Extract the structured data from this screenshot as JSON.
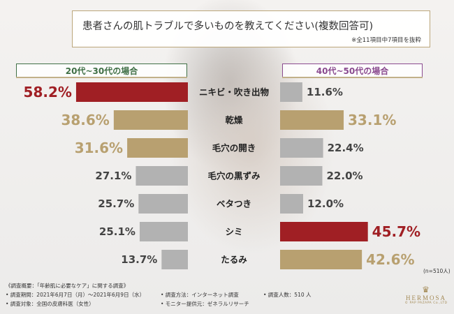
{
  "header": {
    "title": "患者さんの肌トラブルで多いものを教えてください(複数回答可)",
    "note": "※全11項目中7項目を抜粋"
  },
  "segments": {
    "left": "20代~30代の場合",
    "right": "40代~50代の場合"
  },
  "sample_size": "(n=510人)",
  "footer": {
    "summary": "《調査概要：「年齢肌に必要なケア」に関する調査》",
    "period": "• 調査期間：2021年6月7日（月）～2021年6月9日（水）",
    "target": "• 調査対象：全国の皮膚科医（女性）",
    "method": "• 調査方法：インターネット調査",
    "provider": "• モニター提供元：ゼネラルリサーチ",
    "respondents": "• 調査人数：510 人"
  },
  "logo": {
    "name": "HERMOSA",
    "sub": "© PAP PAZAPA Co.,LTD"
  },
  "colors": {
    "red": "#a01f24",
    "gold": "#b8a070",
    "gray": "#b2b2b2",
    "title_border": "#bba67a",
    "left_label": "#3f6f45",
    "right_label": "#8a4a8f"
  },
  "chart_data": {
    "type": "bar",
    "orientation": "horizontal-butterfly",
    "categories": [
      "ニキビ・吹き出物",
      "乾燥",
      "毛穴の開き",
      "毛穴の黒ずみ",
      "ベタつき",
      "シミ",
      "たるみ"
    ],
    "unit": "%",
    "xlim": [
      0,
      60
    ],
    "series": [
      {
        "name": "20代~30代の場合",
        "values": [
          58.2,
          38.6,
          31.6,
          27.1,
          25.7,
          25.1,
          13.7
        ],
        "labels": [
          "58.2%",
          "38.6%",
          "31.6%",
          "27.1%",
          "25.7%",
          "25.1%",
          "13.7%"
        ],
        "highlight": [
          "red",
          "gold",
          "gold",
          "gray",
          "gray",
          "gray",
          "gray"
        ]
      },
      {
        "name": "40代~50代の場合",
        "values": [
          11.6,
          33.1,
          22.4,
          22.0,
          12.0,
          45.7,
          42.6
        ],
        "labels": [
          "11.6%",
          "33.1%",
          "22.4%",
          "22.0%",
          "12.0%",
          "45.7%",
          "42.6%"
        ],
        "highlight": [
          "gray",
          "gold",
          "gray",
          "gray",
          "gray",
          "red",
          "gold"
        ]
      }
    ]
  }
}
